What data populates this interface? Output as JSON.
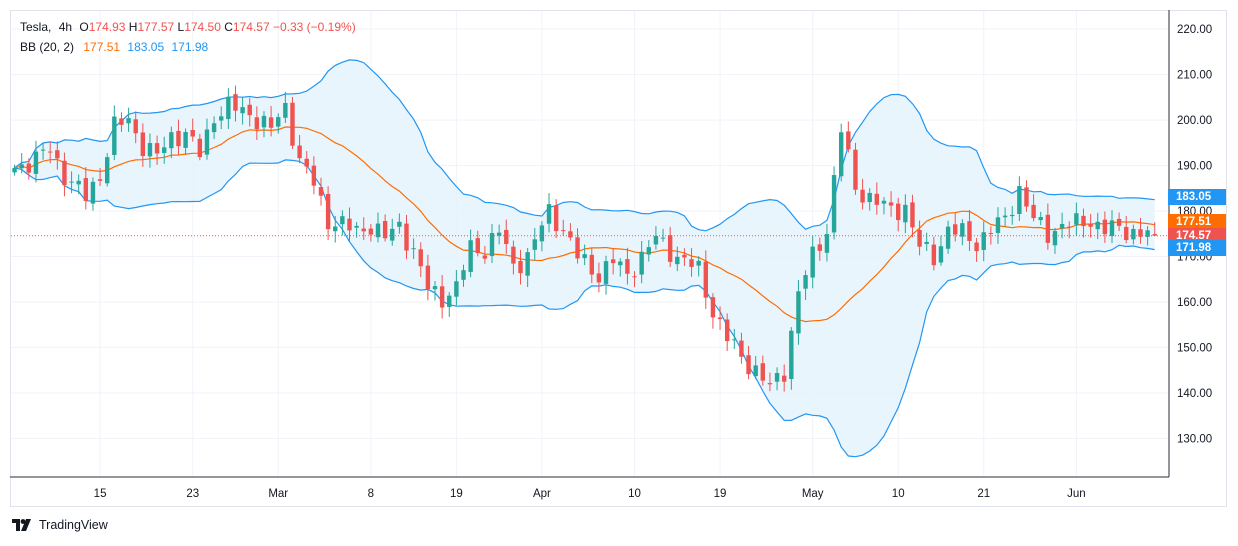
{
  "legend": {
    "symbol": "Tesla",
    "interval": "4h",
    "o_label": "O",
    "o_val": "174.93",
    "h_label": "H",
    "h_val": "177.57",
    "l_label": "L",
    "l_val": "174.50",
    "c_label": "C",
    "c_val": "174.57",
    "change": "−0.33 (−0.19%)",
    "indicator": "BB (20, 2)",
    "bb_basis": "177.51",
    "bb_upper": "183.05",
    "bb_lower": "171.98"
  },
  "price_tags": {
    "upper": "183.05",
    "basis": "177.51",
    "last": "174.57",
    "lower": "171.98"
  },
  "footer": {
    "brand": "TradingView"
  },
  "colors": {
    "up": "#26a69a",
    "down": "#ef5350",
    "basis": "#ff6d00",
    "band": "#2196f3",
    "band_fill": "#e3f2fd",
    "grid": "#f0f3fa",
    "axis_text": "#131722"
  },
  "chart_data": {
    "type": "candlestick",
    "title": "Tesla, 4h",
    "y_axis": {
      "side": "right",
      "ticks": [
        130,
        140,
        150,
        160,
        170,
        180,
        190,
        200,
        210,
        220
      ],
      "tick_labels": [
        "130.00",
        "140.00",
        "150.00",
        "160.00",
        "170.00",
        "180.00",
        "190.00",
        "200.00",
        "210.00",
        "220.00"
      ],
      "range": [
        121.5,
        224
      ]
    },
    "x_axis": {
      "bar_range": [
        -0.5,
        162
      ],
      "ticks": [
        {
          "label": "15",
          "bar": 12
        },
        {
          "label": "23",
          "bar": 25
        },
        {
          "label": "Mar",
          "bar": 37
        },
        {
          "label": "8",
          "bar": 50
        },
        {
          "label": "19",
          "bar": 62
        },
        {
          "label": "Apr",
          "bar": 74
        },
        {
          "label": "10",
          "bar": 87
        },
        {
          "label": "19",
          "bar": 99
        },
        {
          "label": "May",
          "bar": 112
        },
        {
          "label": "10",
          "bar": 124
        },
        {
          "label": "21",
          "bar": 136
        },
        {
          "label": "Jun",
          "bar": 149
        }
      ]
    },
    "last_price": 174.57,
    "anchors": [
      [
        0,
        189.5
      ],
      [
        3,
        191.5
      ],
      [
        5,
        193.5
      ],
      [
        7,
        188
      ],
      [
        10,
        183
      ],
      [
        12,
        188
      ],
      [
        14,
        198.5
      ],
      [
        16,
        200
      ],
      [
        18,
        194.5
      ],
      [
        20,
        192
      ],
      [
        22,
        196.5
      ],
      [
        24,
        197
      ],
      [
        26,
        192.5
      ],
      [
        28,
        201
      ],
      [
        30,
        203
      ],
      [
        33,
        201.5
      ],
      [
        36,
        198
      ],
      [
        38,
        203
      ],
      [
        40,
        191
      ],
      [
        42,
        186
      ],
      [
        44,
        178
      ],
      [
        46,
        177
      ],
      [
        48,
        175.5
      ],
      [
        50,
        177
      ],
      [
        52,
        174
      ],
      [
        54,
        177
      ],
      [
        56,
        171
      ],
      [
        58,
        163
      ],
      [
        60,
        161
      ],
      [
        62,
        163
      ],
      [
        64,
        172
      ],
      [
        66,
        171.5
      ],
      [
        68,
        175.5
      ],
      [
        70,
        168
      ],
      [
        72,
        170
      ],
      [
        75,
        180
      ],
      [
        77,
        176
      ],
      [
        79,
        170
      ],
      [
        82,
        166
      ],
      [
        84,
        169
      ],
      [
        86,
        166
      ],
      [
        88,
        170
      ],
      [
        90,
        174
      ],
      [
        93,
        170
      ],
      [
        96,
        167
      ],
      [
        98,
        158
      ],
      [
        100,
        152
      ],
      [
        102,
        148
      ],
      [
        104,
        145
      ],
      [
        106,
        141
      ],
      [
        108,
        145
      ],
      [
        110,
        162
      ],
      [
        112,
        170
      ],
      [
        114,
        176
      ],
      [
        116,
        198
      ],
      [
        118,
        185
      ],
      [
        120,
        183
      ],
      [
        123,
        180
      ],
      [
        125,
        181
      ],
      [
        127,
        172
      ],
      [
        129,
        170
      ],
      [
        131,
        176
      ],
      [
        133,
        175
      ],
      [
        135,
        173
      ],
      [
        137,
        176
      ],
      [
        139,
        178
      ],
      [
        141,
        185
      ],
      [
        143,
        178
      ],
      [
        145,
        175
      ],
      [
        147,
        177
      ],
      [
        149,
        177
      ],
      [
        151,
        178
      ],
      [
        153,
        176
      ],
      [
        155,
        176
      ],
      [
        157,
        175.5
      ],
      [
        159,
        175
      ],
      [
        160,
        174.57
      ]
    ],
    "series": [
      {
        "name": "Candles (OHLC)",
        "source": "anchors"
      },
      {
        "name": "BB basis (20)",
        "color": "#ff6d00"
      },
      {
        "name": "BB upper",
        "color": "#2196f3"
      },
      {
        "name": "BB lower",
        "color": "#2196f3"
      }
    ]
  }
}
